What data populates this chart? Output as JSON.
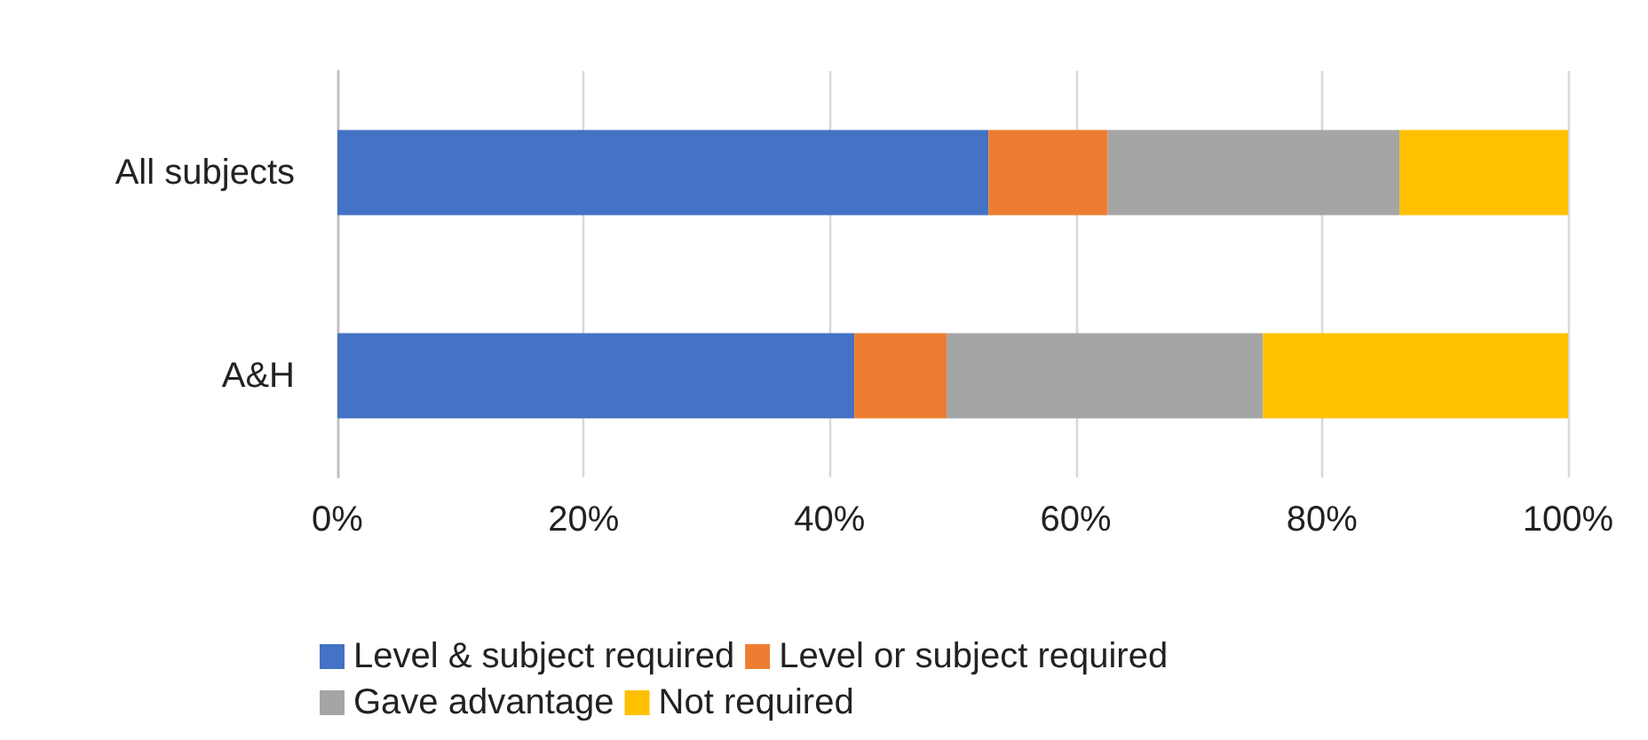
{
  "chart_data": {
    "type": "bar",
    "orientation": "horizontal",
    "stacked": true,
    "categories": [
      "All subjects",
      "A&H"
    ],
    "series": [
      {
        "name": "Level & subject required",
        "color": "#4472c4",
        "values": [
          52.9,
          42.0
        ]
      },
      {
        "name": "Level or subject required",
        "color": "#ed7d31",
        "values": [
          9.7,
          7.5
        ]
      },
      {
        "name": "Gave advantage",
        "color": "#a5a5a5",
        "values": [
          23.7,
          25.7
        ]
      },
      {
        "name": "Not required",
        "color": "#ffc000",
        "values": [
          13.7,
          24.8
        ]
      }
    ],
    "xlim": [
      0,
      100
    ],
    "xticks": [
      {
        "value": 0,
        "label": "0%"
      },
      {
        "value": 20,
        "label": "20%"
      },
      {
        "value": 40,
        "label": "40%"
      },
      {
        "value": 60,
        "label": "60%"
      },
      {
        "value": 80,
        "label": "80%"
      },
      {
        "value": 100,
        "label": "100%"
      }
    ],
    "grid": "x",
    "legend": "bottom"
  }
}
